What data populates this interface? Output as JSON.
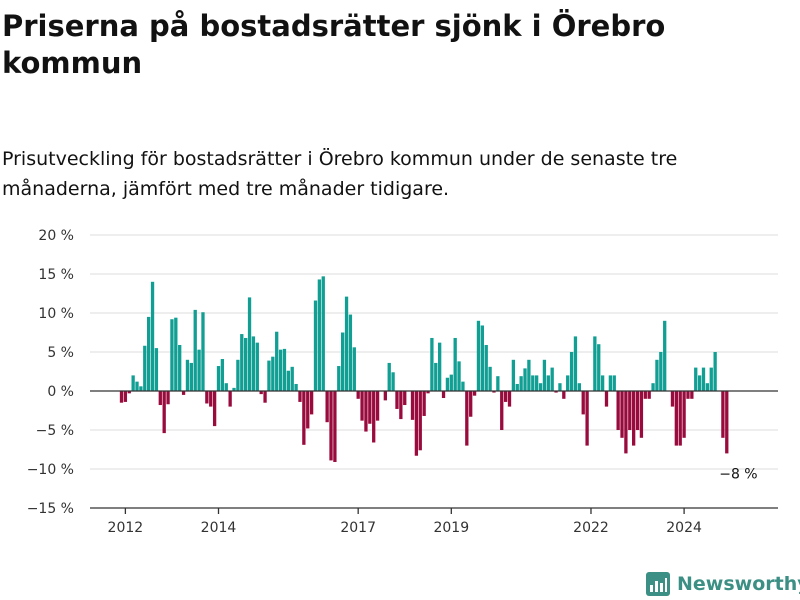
{
  "title": "Priserna på bostadsrätter sjönk i Örebro kommun",
  "subtitle": "Prisutveckling för bostadsrätter i Örebro kommun under de senaste tre månaderna, jämfört med tre månader tidigare.",
  "brand": {
    "name": "Newsworthy",
    "icon": "newsworthy-logo-icon"
  },
  "colors": {
    "positive": "#119e93",
    "negative": "#990a3d",
    "grid": "#dddddd",
    "axis": "#333333"
  },
  "chart_data": {
    "type": "bar",
    "title": "Priserna på bostadsrätter sjönk i Örebro kommun",
    "subtitle": "Prisutveckling för bostadsrätter i Örebro kommun under de senaste tre månaderna, jämfört med tre månader tidigare.",
    "x_unit": "month",
    "x_start": "2011-12",
    "ylim": [
      -15,
      20
    ],
    "yticks": [
      -15,
      -10,
      -5,
      0,
      5,
      10,
      15,
      20
    ],
    "ytick_labels": [
      "−15 %",
      "−10 %",
      "−5 %",
      "0 %",
      "5 %",
      "10 %",
      "15 %",
      "20 %"
    ],
    "xticks": [
      {
        "label": "2012",
        "date": "2012-01"
      },
      {
        "label": "2014",
        "date": "2014-01"
      },
      {
        "label": "2017",
        "date": "2017-01"
      },
      {
        "label": "2019",
        "date": "2019-01"
      },
      {
        "label": "2022",
        "date": "2022-01"
      },
      {
        "label": "2024",
        "date": "2024-01"
      }
    ],
    "grid": true,
    "annotation": {
      "text": "−8 %",
      "date": "2025-03",
      "value": -8
    },
    "values": [
      -1.5,
      -1.4,
      -0.3,
      2.0,
      1.2,
      0.6,
      5.8,
      9.5,
      14.0,
      5.5,
      -1.8,
      -5.4,
      -1.7,
      9.2,
      9.4,
      5.9,
      -0.5,
      4.0,
      3.6,
      10.4,
      5.3,
      10.1,
      -1.6,
      -2.0,
      -4.5,
      3.2,
      4.1,
      1.0,
      -2.0,
      0.4,
      4.0,
      7.3,
      6.8,
      12.0,
      7.0,
      6.2,
      -0.4,
      -1.5,
      3.9,
      4.4,
      7.6,
      5.3,
      5.4,
      2.6,
      3.1,
      0.9,
      -1.4,
      -6.9,
      -4.8,
      -3.0,
      11.6,
      14.3,
      14.7,
      -4.0,
      -8.9,
      -9.1,
      3.2,
      7.5,
      12.1,
      9.8,
      5.6,
      -1.0,
      -3.8,
      -5.2,
      -4.2,
      -6.6,
      -3.8,
      0.0,
      -1.2,
      3.6,
      2.4,
      -2.3,
      -3.6,
      -1.8,
      0.0,
      -3.7,
      -8.3,
      -7.6,
      -3.2,
      -0.3,
      6.8,
      3.6,
      6.2,
      -0.9,
      1.7,
      2.1,
      6.8,
      3.8,
      1.2,
      -7.0,
      -3.3,
      -0.6,
      9.0,
      8.4,
      5.9,
      3.1,
      -0.2,
      1.9,
      -5.0,
      -1.4,
      -2.0,
      4.0,
      0.9,
      1.9,
      2.9,
      4.0,
      2.0,
      2.0,
      1.0,
      4.0,
      2.0,
      3.0,
      -0.2,
      1.0,
      -1.0,
      2.0,
      5.0,
      7.0,
      1.0,
      -3.0,
      -7.0,
      0.0,
      7.0,
      6.0,
      2.0,
      -2.0,
      2.0,
      2.0,
      -5.0,
      -6.0,
      -8.0,
      -5.0,
      -7.0,
      -5.0,
      -6.0,
      -1.0,
      -1.0,
      1.0,
      4.0,
      5.0,
      9.0,
      0.0,
      -2.0,
      -7.0,
      -7.0,
      -6.0,
      -1.0,
      -1.0,
      3.0,
      2.0,
      3.0,
      1.0,
      3.0,
      5.0,
      0.0,
      -6.0,
      -8.0
    ]
  }
}
